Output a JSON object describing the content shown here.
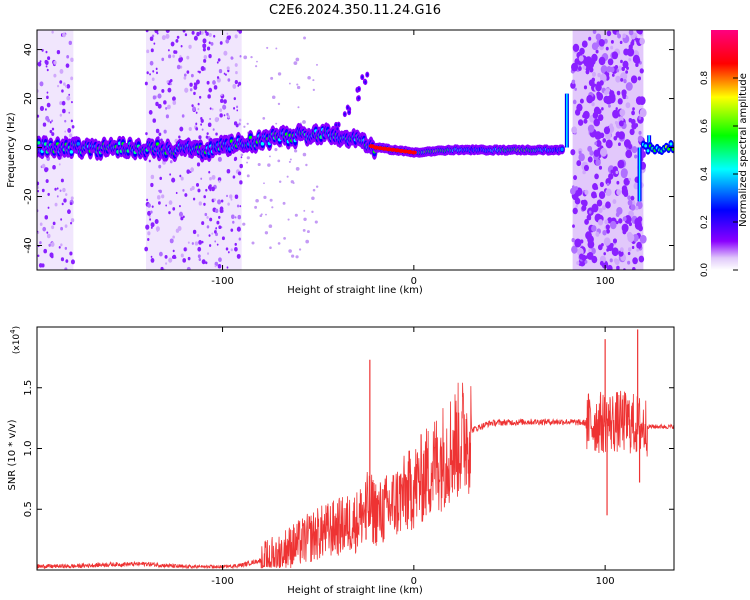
{
  "figure_title": "C2E6.2024.350.11.24.G16",
  "chart_data": [
    {
      "type": "heatmap",
      "title": "C2E6.2024.350.11.24.G16",
      "xlabel": "Height of straight line (km)",
      "ylabel": "Frequency (Hz)",
      "xlim": [
        -197,
        136
      ],
      "ylim": [
        -50,
        48
      ],
      "x_ticks": [
        -100,
        0,
        100
      ],
      "x_tick_labels": [
        "-100",
        "0",
        "100"
      ],
      "y_ticks": [
        -40,
        -20,
        0,
        20,
        40
      ],
      "y_tick_labels": [
        "-40",
        "-20",
        "0",
        "20",
        "40"
      ],
      "grid": false,
      "colorbar": {
        "label": "Normalized spectral amplitude",
        "range": [
          0,
          1
        ],
        "ticks": [
          0.0,
          0.2,
          0.4,
          0.6,
          0.8
        ],
        "tick_labels": [
          "0.0",
          "0.2",
          "0.4",
          "0.6",
          "0.8"
        ],
        "colormap": [
          "#ffffff",
          "#d8b8f8",
          "#8a00ff",
          "#0000ff",
          "#00ffff",
          "#00ff00",
          "#ffff00",
          "#ff0000",
          "#ff007f"
        ]
      },
      "ridge": [
        [
          -197,
          0
        ],
        [
          -150,
          0
        ],
        [
          -110,
          -1
        ],
        [
          -100,
          0
        ],
        [
          -80,
          3
        ],
        [
          -60,
          5
        ],
        [
          -45,
          6
        ],
        [
          -30,
          3
        ],
        [
          -20,
          0
        ],
        [
          0,
          -2
        ],
        [
          20,
          -1
        ],
        [
          40,
          -1
        ],
        [
          60,
          -1
        ],
        [
          78,
          -1
        ]
      ],
      "branch": [
        [
          -40,
          8
        ],
        [
          -35,
          15
        ],
        [
          -30,
          22
        ],
        [
          -26,
          28
        ]
      ],
      "noise_bands": [
        [
          -197,
          -178
        ],
        [
          -140,
          -90
        ],
        [
          83,
          120
        ]
      ],
      "edge_features": [
        [
          80,
          22
        ],
        [
          118,
          -22
        ],
        [
          123,
          5
        ]
      ]
    },
    {
      "type": "line",
      "xlabel": "Height of straight line (km)",
      "ylabel": "SNR (10 * v/v)",
      "y_multiplier": "(x10",
      "y_multiplier_exp": "4",
      "y_multiplier_close": ")",
      "xlim": [
        -197,
        136
      ],
      "ylim": [
        0,
        20000
      ],
      "x_ticks": [
        -100,
        0,
        100
      ],
      "x_tick_labels": [
        "-100",
        "0",
        "100"
      ],
      "y_ticks": [
        5000,
        10000,
        15000
      ],
      "y_tick_labels": [
        "0.5",
        "1.0",
        "1.5"
      ],
      "grid": false,
      "color": "#ee3333",
      "envelope": [
        [
          -197,
          300
        ],
        [
          -180,
          300
        ],
        [
          -160,
          450
        ],
        [
          -140,
          500
        ],
        [
          -120,
          250
        ],
        [
          -100,
          220
        ],
        [
          -90,
          400
        ],
        [
          -80,
          800
        ],
        [
          -70,
          1500
        ],
        [
          -60,
          2200
        ],
        [
          -50,
          3000
        ],
        [
          -40,
          3500
        ],
        [
          -30,
          4000
        ],
        [
          -26,
          4800
        ],
        [
          -24,
          5200
        ],
        [
          -22,
          5000
        ],
        [
          -18,
          4600
        ],
        [
          -10,
          5500
        ],
        [
          0,
          6800
        ],
        [
          10,
          8500
        ],
        [
          20,
          10200
        ],
        [
          30,
          11500
        ],
        [
          40,
          12100
        ],
        [
          60,
          12200
        ],
        [
          80,
          12200
        ],
        [
          90,
          12100
        ],
        [
          110,
          12200
        ],
        [
          120,
          11800
        ],
        [
          136,
          11800
        ]
      ],
      "spikes": [
        [
          -23,
          17300
        ],
        [
          -25,
          2500
        ],
        [
          100,
          19000
        ],
        [
          101,
          4500
        ],
        [
          117,
          19800
        ],
        [
          118,
          7200
        ]
      ]
    }
  ]
}
